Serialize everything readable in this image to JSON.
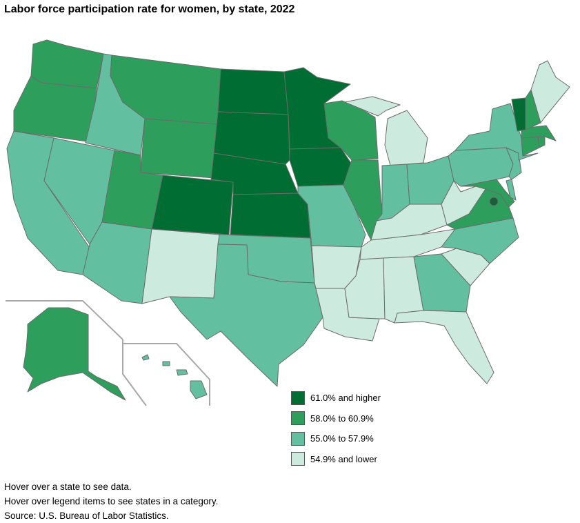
{
  "title": "Labor force participation rate for women, by state, 2022",
  "colors": {
    "c1": "#006d32",
    "c2": "#2e9e5d",
    "c3": "#62bfa0",
    "c4": "#cdeadf",
    "border": "#6b6b6b",
    "dc_marker": "#1b5e3b"
  },
  "legend": [
    {
      "label": "61.0% and higher",
      "color": "#006d32"
    },
    {
      "label": "58.0% to 60.9%",
      "color": "#2e9e5d"
    },
    {
      "label": "55.0% to 57.9%",
      "color": "#62bfa0"
    },
    {
      "label": "54.9% and lower",
      "color": "#cdeadf"
    }
  ],
  "state_categories": {
    "WA": "c2",
    "OR": "c2",
    "CA": "c3",
    "ID": "c3",
    "NV": "c3",
    "MT": "c2",
    "WY": "c2",
    "UT": "c2",
    "AZ": "c3",
    "CO": "c1",
    "NM": "c4",
    "ND": "c1",
    "SD": "c1",
    "NE": "c1",
    "KS": "c1",
    "OK": "c3",
    "TX": "c3",
    "MN": "c1",
    "IA": "c1",
    "MO": "c3",
    "AR": "c4",
    "LA": "c4",
    "WI": "c2",
    "IL": "c2",
    "MI": "c4",
    "IN": "c3",
    "OH": "c3",
    "KY": "c4",
    "TN": "c4",
    "MS": "c4",
    "AL": "c4",
    "GA": "c3",
    "FL": "c4",
    "SC": "c4",
    "NC": "c3",
    "VA": "c2",
    "WV": "c4",
    "MD": "c2",
    "DE": "c3",
    "PA": "c3",
    "NJ": "c3",
    "NY": "c3",
    "CT": "c2",
    "RI": "c2",
    "MA": "c2",
    "VT": "c1",
    "NH": "c2",
    "ME": "c4",
    "AK": "c2",
    "HI": "c3",
    "DC": "c1"
  },
  "notes": [
    "Hover over a state to see data.",
    "Hover over legend items to see states in a category.",
    "Source: U.S. Bureau of Labor Statistics."
  ]
}
